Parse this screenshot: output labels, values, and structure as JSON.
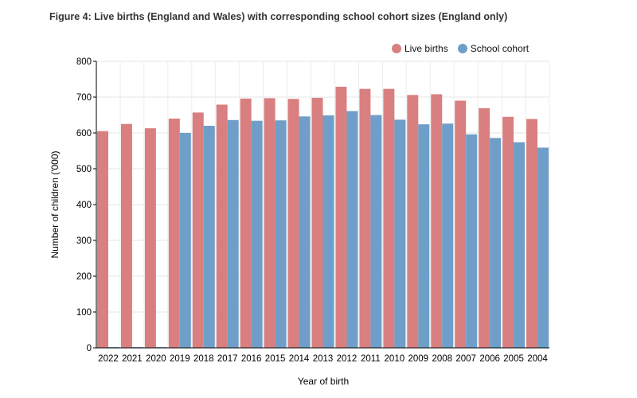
{
  "chart_data": {
    "type": "bar",
    "title": "Figure 4: Live births (England and Wales) with corresponding school cohort sizes (England only)",
    "xlabel": "Year of birth",
    "ylabel": "Number of children ('000)",
    "ylim": [
      0,
      800
    ],
    "yticks": [
      0,
      100,
      200,
      300,
      400,
      500,
      600,
      700,
      800
    ],
    "grid": true,
    "legend_position": "top-right",
    "categories": [
      "2022",
      "2021",
      "2020",
      "2019",
      "2018",
      "2017",
      "2016",
      "2015",
      "2014",
      "2013",
      "2012",
      "2011",
      "2010",
      "2009",
      "2008",
      "2007",
      "2006",
      "2005",
      "2004"
    ],
    "series": [
      {
        "name": "Live births",
        "color": "#d97f80",
        "values": [
          605,
          625,
          613,
          640,
          657,
          679,
          696,
          697,
          695,
          698,
          729,
          723,
          723,
          706,
          708,
          690,
          669,
          645,
          639
        ]
      },
      {
        "name": "School cohort",
        "color": "#6f9ec8",
        "values": [
          2,
          2,
          2,
          600,
          620,
          636,
          634,
          635,
          646,
          649,
          661,
          650,
          637,
          624,
          626,
          596,
          586,
          574,
          559
        ]
      }
    ]
  }
}
